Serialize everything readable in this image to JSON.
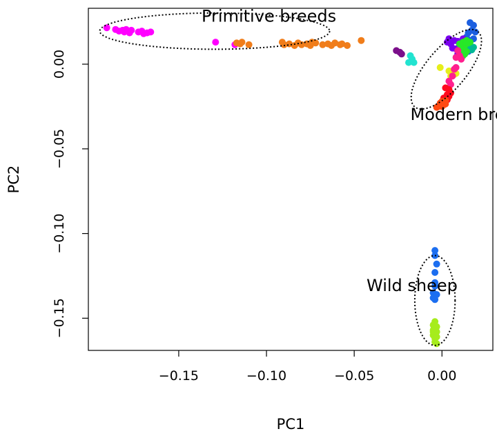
{
  "chart_data": {
    "type": "scatter",
    "title": "",
    "xlabel": "PC1",
    "ylabel": "PC2",
    "xlim": [
      -0.2015,
      0.029
    ],
    "ylim": [
      -0.169,
      0.033
    ],
    "x_ticks": [
      -0.15,
      -0.1,
      -0.05,
      0.0
    ],
    "x_tick_labels": [
      "−0.15",
      "−0.10",
      "−0.05",
      "0.00"
    ],
    "y_ticks": [
      0.0,
      -0.05,
      -0.1,
      -0.15
    ],
    "y_tick_labels": [
      "0.00",
      "−0.05",
      "−0.10",
      "−0.15"
    ],
    "annotations": [
      {
        "id": "primitive",
        "text": "Primitive breeds",
        "x": -0.137,
        "y": 0.025
      },
      {
        "id": "modern",
        "text": "Modern breeds",
        "x": -0.018,
        "y": -0.033
      },
      {
        "id": "wild",
        "text": "Wild sheep",
        "x": -0.043,
        "y": -0.134
      }
    ],
    "ellipses": [
      {
        "id": "primitive-ellipse",
        "cx": -0.1295,
        "cy": 0.0195,
        "rx": 0.0655,
        "ry": 0.0107,
        "rotate": 0
      },
      {
        "id": "modern-ellipse",
        "cx": 0.0025,
        "cy": -0.003,
        "rx": 0.028,
        "ry": 0.0115,
        "rotate": -50
      },
      {
        "id": "wild-ellipse",
        "cx": -0.004,
        "cy": -0.1395,
        "rx": 0.0115,
        "ry": 0.0265,
        "rotate": 0
      }
    ],
    "series": [
      {
        "name": "Primitive magenta",
        "color": "#ff00ff",
        "points": [
          [
            -0.191,
            0.0215
          ],
          [
            -0.186,
            0.0205
          ],
          [
            -0.184,
            0.0195
          ],
          [
            -0.182,
            0.02
          ],
          [
            -0.181,
            0.019
          ],
          [
            -0.18,
            0.0205
          ],
          [
            -0.179,
            0.0195
          ],
          [
            -0.178,
            0.0185
          ],
          [
            -0.177,
            0.02
          ],
          [
            -0.173,
            0.019
          ],
          [
            -0.171,
            0.0195
          ],
          [
            -0.17,
            0.018
          ],
          [
            -0.168,
            0.0185
          ],
          [
            -0.166,
            0.019
          ],
          [
            -0.129,
            0.013
          ],
          [
            -0.118,
            0.0115
          ]
        ]
      },
      {
        "name": "Primitive orange",
        "color": "#f07d1a",
        "points": [
          [
            -0.117,
            0.0125
          ],
          [
            -0.115,
            0.012
          ],
          [
            -0.114,
            0.013
          ],
          [
            -0.11,
            0.0115
          ],
          [
            -0.091,
            0.013
          ],
          [
            -0.09,
            0.0115
          ],
          [
            -0.087,
            0.012
          ],
          [
            -0.084,
            0.011
          ],
          [
            -0.082,
            0.0125
          ],
          [
            -0.08,
            0.0115
          ],
          [
            -0.077,
            0.012
          ],
          [
            -0.075,
            0.011
          ],
          [
            -0.074,
            0.013
          ],
          [
            -0.072,
            0.0125
          ],
          [
            -0.068,
            0.0115
          ],
          [
            -0.065,
            0.012
          ],
          [
            -0.063,
            0.011
          ],
          [
            -0.061,
            0.0125
          ],
          [
            -0.058,
            0.0115
          ],
          [
            -0.057,
            0.012
          ],
          [
            -0.054,
            0.011
          ],
          [
            -0.046,
            0.014
          ]
        ]
      },
      {
        "name": "Intermediate dark",
        "color": "#7b0f8a",
        "points": [
          [
            -0.026,
            0.008
          ],
          [
            -0.024,
            0.007
          ],
          [
            -0.023,
            0.006
          ]
        ]
      },
      {
        "name": "Intermediate cyan",
        "color": "#22e3d0",
        "points": [
          [
            -0.018,
            0.005
          ],
          [
            -0.019,
            0.001
          ],
          [
            -0.016,
            0.001
          ],
          [
            -0.017,
            0.003
          ]
        ]
      },
      {
        "name": "Modern blue",
        "color": "#1c5fe0",
        "points": [
          [
            0.016,
            0.0245
          ],
          [
            0.018,
            0.023
          ],
          [
            0.017,
            0.02
          ],
          [
            0.015,
            0.0185
          ],
          [
            0.019,
            0.019
          ],
          [
            0.014,
            0.016
          ],
          [
            0.016,
            0.014
          ],
          [
            0.012,
            0.01
          ],
          [
            0.013,
            0.006
          ],
          [
            0.011,
            0.004
          ],
          [
            0.015,
            0.0075
          ],
          [
            0.018,
            0.015
          ]
        ]
      },
      {
        "name": "Modern purple",
        "color": "#7a00ee",
        "points": [
          [
            0.004,
            0.015
          ],
          [
            0.005,
            0.012
          ],
          [
            0.007,
            0.014
          ],
          [
            0.009,
            0.0135
          ],
          [
            0.01,
            0.011
          ],
          [
            0.006,
            0.0095
          ],
          [
            0.008,
            0.009
          ],
          [
            0.011,
            0.013
          ],
          [
            0.012,
            0.015
          ],
          [
            0.003,
            0.013
          ],
          [
            0.009,
            0.006
          ],
          [
            0.01,
            0.008
          ]
        ]
      },
      {
        "name": "Modern teal",
        "color": "#00b896",
        "points": [
          [
            0.014,
            0.012
          ],
          [
            0.015,
            0.0095
          ],
          [
            0.013,
            0.008
          ],
          [
            0.016,
            0.011
          ],
          [
            0.017,
            0.0085
          ],
          [
            0.012,
            0.007
          ],
          [
            0.018,
            0.01
          ]
        ]
      },
      {
        "name": "Modern green",
        "color": "#27e827",
        "points": [
          [
            0.012,
            0.013
          ],
          [
            0.013,
            0.011
          ],
          [
            0.014,
            0.014
          ],
          [
            0.011,
            0.009
          ],
          [
            0.015,
            0.0125
          ],
          [
            0.013,
            0.006
          ],
          [
            0.014,
            0.0075
          ],
          [
            0.012,
            0.005
          ],
          [
            0.016,
            0.013
          ],
          [
            0.01,
            0.012
          ]
        ]
      },
      {
        "name": "Modern yellow",
        "color": "#e6ee1a",
        "points": [
          [
            0.004,
            -0.004
          ],
          [
            0.006,
            -0.005
          ],
          [
            0.008,
            -0.0055
          ],
          [
            0.005,
            -0.007
          ],
          [
            0.007,
            -0.006
          ],
          [
            -0.001,
            -0.002
          ]
        ]
      },
      {
        "name": "Modern pink",
        "color": "#ff1f8e",
        "points": [
          [
            0.009,
            0.008
          ],
          [
            0.01,
            0.005
          ],
          [
            0.008,
            0.004
          ],
          [
            0.011,
            0.003
          ],
          [
            0.007,
            -0.003
          ],
          [
            0.006,
            -0.007
          ],
          [
            0.004,
            -0.01
          ],
          [
            0.005,
            -0.012
          ],
          [
            0.008,
            -0.002
          ]
        ]
      },
      {
        "name": "Modern red",
        "color": "#ff0a1e",
        "points": [
          [
            0.002,
            -0.014
          ],
          [
            0.004,
            -0.015
          ],
          [
            0.003,
            -0.018
          ],
          [
            0.005,
            -0.017
          ],
          [
            0.001,
            -0.02
          ],
          [
            0.003,
            -0.021
          ],
          [
            0.004,
            -0.019
          ],
          [
            0.002,
            -0.022
          ]
        ]
      },
      {
        "name": "Modern orange-red",
        "color": "#ff4a12",
        "points": [
          [
            -0.001,
            -0.023
          ],
          [
            0.0,
            -0.025
          ],
          [
            -0.002,
            -0.025
          ],
          [
            0.001,
            -0.024
          ],
          [
            0.002,
            -0.0235
          ],
          [
            -0.003,
            -0.0255
          ],
          [
            0.0,
            -0.022
          ],
          [
            0.002,
            -0.0215
          ]
        ]
      },
      {
        "name": "Wild blue",
        "color": "#1c6ef0",
        "points": [
          [
            -0.004,
            -0.11
          ],
          [
            -0.004,
            -0.113
          ],
          [
            -0.003,
            -0.118
          ],
          [
            -0.004,
            -0.123
          ],
          [
            -0.004,
            -0.129
          ],
          [
            -0.004,
            -0.131
          ],
          [
            -0.005,
            -0.135
          ],
          [
            -0.004,
            -0.137
          ],
          [
            -0.005,
            -0.138
          ],
          [
            -0.003,
            -0.136
          ],
          [
            -0.004,
            -0.139
          ]
        ]
      },
      {
        "name": "Wild yellow-green",
        "color": "#a6ec1c",
        "points": [
          [
            -0.004,
            -0.152
          ],
          [
            -0.005,
            -0.154
          ],
          [
            -0.003,
            -0.155
          ],
          [
            -0.004,
            -0.156
          ],
          [
            -0.005,
            -0.157
          ],
          [
            -0.003,
            -0.158
          ],
          [
            -0.004,
            -0.159
          ],
          [
            -0.005,
            -0.16
          ],
          [
            -0.003,
            -0.161
          ],
          [
            -0.004,
            -0.162
          ],
          [
            -0.004,
            -0.164
          ],
          [
            -0.003,
            -0.165
          ],
          [
            -0.005,
            -0.158
          ],
          [
            -0.004,
            -0.155
          ]
        ]
      }
    ]
  }
}
